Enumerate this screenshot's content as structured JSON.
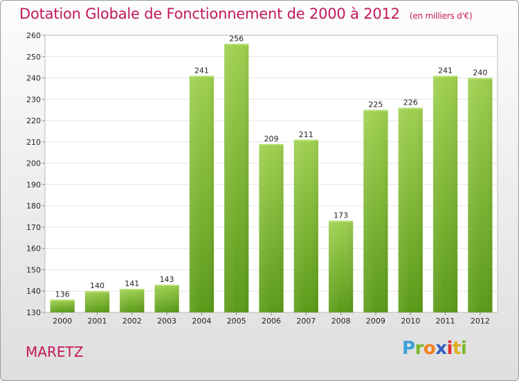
{
  "header": {
    "title": "Dotation Globale de Fonctionnement de 2000 à 2012",
    "subtitle": "(en milliers d'€)"
  },
  "footer": {
    "commune": "MARETZ",
    "brand_letters": [
      "P",
      "r",
      "o",
      "x",
      "i",
      "t",
      "i"
    ]
  },
  "colors": {
    "title": "#c2185b",
    "bar_light": "#9fd050",
    "bar_dark": "#5a9a18",
    "grid": "#e4e4e4"
  },
  "chart_data": {
    "type": "bar",
    "title": "Dotation Globale de Fonctionnement de 2000 à 2012",
    "subtitle": "(en milliers d'€)",
    "xlabel": "",
    "ylabel": "",
    "categories": [
      "2000",
      "2001",
      "2002",
      "2003",
      "2004",
      "2005",
      "2006",
      "2007",
      "2008",
      "2009",
      "2010",
      "2011",
      "2012"
    ],
    "values": [
      136,
      140,
      141,
      143,
      241,
      256,
      209,
      211,
      173,
      225,
      226,
      241,
      240
    ],
    "ylim": [
      130,
      260
    ],
    "yticks": [
      130,
      140,
      150,
      160,
      170,
      180,
      190,
      200,
      210,
      220,
      230,
      240,
      250,
      260
    ],
    "grid": true,
    "legend": "none"
  }
}
